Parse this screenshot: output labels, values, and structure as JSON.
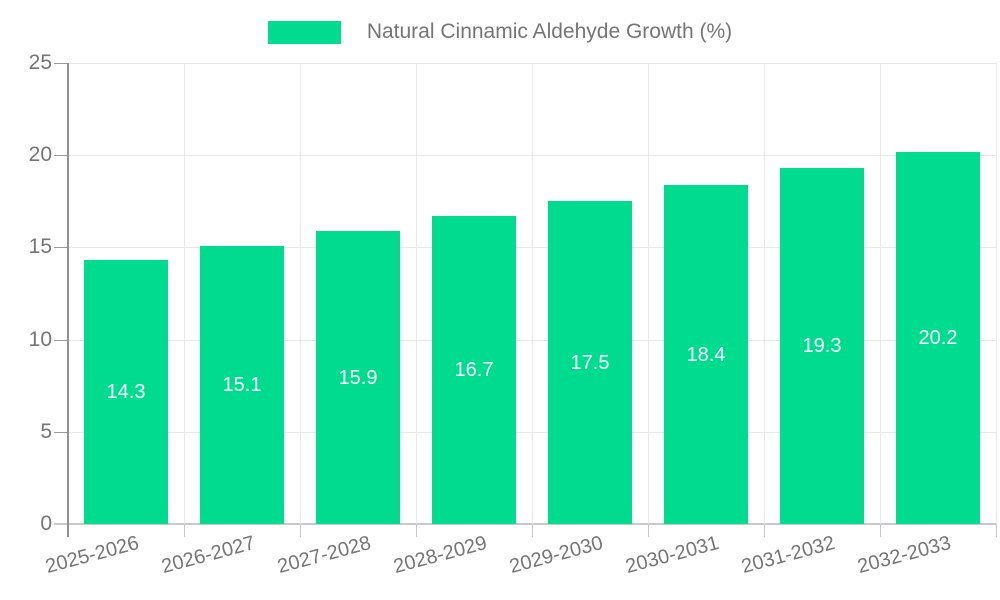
{
  "legend": {
    "label": "Natural Cinnamic Aldehyde Growth (%)"
  },
  "chart_data": {
    "type": "bar",
    "title": "Natural Cinnamic Aldehyde Growth (%)",
    "series_name": "Natural Cinnamic Aldehyde Growth (%)",
    "categories": [
      "2025-2026",
      "2026-2027",
      "2027-2028",
      "2028-2029",
      "2029-2030",
      "2030-2031",
      "2031-2032",
      "2032-2033"
    ],
    "values": [
      14.3,
      15.1,
      15.9,
      16.7,
      17.5,
      18.4,
      19.3,
      20.2
    ],
    "value_labels": [
      "14.3",
      "15.1",
      "15.9",
      "16.7",
      "17.5",
      "18.4",
      "19.3",
      "20.2"
    ],
    "xlabel": "",
    "ylabel": "",
    "ylim": [
      0,
      25
    ],
    "y_ticks": [
      0,
      5,
      10,
      15,
      20,
      25
    ],
    "grid": true,
    "legend_position": "top-center",
    "x_label_rotation_deg": -15,
    "colors": {
      "bar": "#00DC8F",
      "value_label": "#ffffff",
      "axis_text": "#757575",
      "gridline": "#e8e8e8",
      "y_axis_line": "#919191",
      "x_axis_line": "#c9c9c9"
    }
  }
}
